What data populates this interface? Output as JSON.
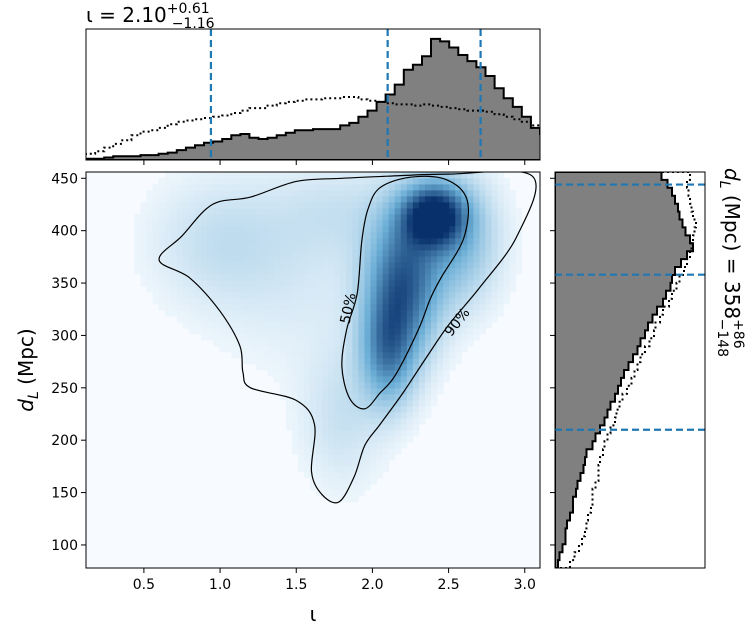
{
  "chart_data": {
    "type": "heatmap",
    "description_kind": "corner plot: 2D posterior density with marginal histograms",
    "title": "ι = 2.10",
    "title_sup": "+0.61",
    "title_sub": "−1.16",
    "right_title": "d",
    "right_title_sub": "L",
    "right_title_rest": " (Mpc) = 358",
    "right_title_sup": "+86",
    "right_title_subscript": "−148",
    "xlabel": "ι",
    "ylabel_main": "d",
    "ylabel_sub": "L",
    "ylabel_rest": " (Mpc)",
    "xlim": [
      0.12,
      3.1
    ],
    "ylim": [
      78,
      456
    ],
    "xticks": [
      0.5,
      1.0,
      1.5,
      2.0,
      2.5,
      3.0
    ],
    "xtick_labels": [
      "0.5",
      "1.0",
      "1.5",
      "2.0",
      "2.5",
      "3.0"
    ],
    "yticks": [
      100,
      150,
      200,
      250,
      300,
      350,
      400,
      450
    ],
    "ytick_labels": [
      "100",
      "150",
      "200",
      "250",
      "300",
      "350",
      "400",
      "450"
    ],
    "contour_labels": [
      "50%",
      "90%"
    ],
    "contour_label_positions": [
      [
        1.87,
        325
      ],
      [
        2.58,
        310
      ]
    ],
    "contour_50": [
      [
        2.05,
        441
      ],
      [
        2.25,
        451
      ],
      [
        2.48,
        449
      ],
      [
        2.62,
        430
      ],
      [
        2.6,
        393
      ],
      [
        2.45,
        355
      ],
      [
        2.38,
        335
      ],
      [
        2.3,
        305
      ],
      [
        2.15,
        262
      ],
      [
        2.05,
        245
      ],
      [
        1.95,
        230
      ],
      [
        1.85,
        240
      ],
      [
        1.8,
        270
      ],
      [
        1.83,
        305
      ],
      [
        1.9,
        340
      ],
      [
        1.93,
        390
      ],
      [
        1.97,
        420
      ]
    ],
    "contour_90": [
      [
        0.75,
        395
      ],
      [
        0.95,
        425
      ],
      [
        1.2,
        432
      ],
      [
        1.5,
        447
      ],
      [
        1.8,
        450
      ],
      [
        2.1,
        452
      ],
      [
        2.5,
        454
      ],
      [
        3.05,
        452
      ],
      [
        2.95,
        395
      ],
      [
        2.7,
        345
      ],
      [
        2.5,
        310
      ],
      [
        2.35,
        278
      ],
      [
        2.2,
        245
      ],
      [
        2.05,
        215
      ],
      [
        1.95,
        195
      ],
      [
        1.88,
        165
      ],
      [
        1.78,
        141
      ],
      [
        1.67,
        148
      ],
      [
        1.6,
        170
      ],
      [
        1.62,
        215
      ],
      [
        1.5,
        238
      ],
      [
        1.2,
        250
      ],
      [
        1.15,
        265
      ],
      [
        1.13,
        290
      ],
      [
        1.0,
        323
      ],
      [
        0.8,
        355
      ],
      [
        0.6,
        372
      ]
    ],
    "density_blobs": [
      {
        "x": 2.4,
        "y": 415,
        "sx": 0.14,
        "sy": 20,
        "w": 1.0
      },
      {
        "x": 2.2,
        "y": 350,
        "sx": 0.16,
        "sy": 45,
        "w": 0.75
      },
      {
        "x": 2.1,
        "y": 285,
        "sx": 0.12,
        "sy": 35,
        "w": 0.55
      },
      {
        "x": 2.55,
        "y": 390,
        "sx": 0.18,
        "sy": 40,
        "w": 0.35
      },
      {
        "x": 1.8,
        "y": 225,
        "sx": 0.18,
        "sy": 45,
        "w": 0.12
      },
      {
        "x": 1.0,
        "y": 390,
        "sx": 0.3,
        "sy": 40,
        "w": 0.12
      },
      {
        "x": 1.5,
        "y": 360,
        "sx": 0.4,
        "sy": 60,
        "w": 0.07
      },
      {
        "x": 1.8,
        "y": 420,
        "sx": 0.3,
        "sy": 30,
        "w": 0.09
      }
    ],
    "top_hist": {
      "xlim": [
        0.12,
        3.1
      ],
      "ylim": [
        0,
        1.06
      ],
      "x_step_width": 0.0596,
      "series": [
        {
          "name": "",
          "style": "filled-step",
          "values": [
            0.01,
            0.01,
            0.02,
            0.03,
            0.03,
            0.03,
            0.04,
            0.04,
            0.05,
            0.06,
            0.08,
            0.1,
            0.12,
            0.14,
            0.15,
            0.17,
            0.2,
            0.21,
            0.18,
            0.17,
            0.18,
            0.2,
            0.22,
            0.24,
            0.24,
            0.25,
            0.25,
            0.25,
            0.28,
            0.3,
            0.35,
            0.4,
            0.47,
            0.53,
            0.61,
            0.73,
            0.77,
            0.84,
            0.98,
            0.96,
            0.91,
            0.85,
            0.8,
            0.75,
            0.68,
            0.58,
            0.5,
            0.43,
            0.35,
            0.26,
            0.21,
            0.17,
            0.14,
            0.12,
            0.08,
            0.06,
            0.05,
            0.04,
            0.03,
            0.02
          ]
        },
        {
          "name": "",
          "style": "dotted-step",
          "values": [
            0.05,
            0.07,
            0.1,
            0.13,
            0.16,
            0.2,
            0.23,
            0.24,
            0.26,
            0.29,
            0.31,
            0.32,
            0.33,
            0.34,
            0.35,
            0.36,
            0.38,
            0.4,
            0.42,
            0.42,
            0.44,
            0.46,
            0.47,
            0.48,
            0.49,
            0.49,
            0.5,
            0.5,
            0.51,
            0.51,
            0.49,
            0.48,
            0.47,
            0.46,
            0.45,
            0.45,
            0.44,
            0.45,
            0.44,
            0.43,
            0.42,
            0.41,
            0.4,
            0.4,
            0.39,
            0.37,
            0.35,
            0.33,
            0.31,
            0.28,
            0.26,
            0.24,
            0.23,
            0.22,
            0.2,
            0.17,
            0.14,
            0.1,
            0.07,
            0.05
          ]
        }
      ],
      "quantile_lines": [
        0.94,
        2.1,
        2.71
      ]
    },
    "right_hist": {
      "ylim": [
        78,
        456
      ],
      "xlim": [
        0,
        1.0
      ],
      "y_step_width": 7.56,
      "series": [
        {
          "name": "",
          "style": "filled-step",
          "values": [
            0.02,
            0.03,
            0.05,
            0.07,
            0.07,
            0.08,
            0.1,
            0.12,
            0.12,
            0.14,
            0.15,
            0.17,
            0.19,
            0.2,
            0.21,
            0.25,
            0.27,
            0.3,
            0.33,
            0.35,
            0.37,
            0.4,
            0.42,
            0.44,
            0.46,
            0.49,
            0.52,
            0.55,
            0.57,
            0.6,
            0.62,
            0.65,
            0.68,
            0.72,
            0.74,
            0.77,
            0.78,
            0.8,
            0.84,
            0.88,
            0.92,
            0.9,
            0.87,
            0.85,
            0.83,
            0.82,
            0.8,
            0.78,
            0.75,
            0.71
          ]
        },
        {
          "name": "",
          "style": "dotted-step",
          "values": [
            0.1,
            0.13,
            0.16,
            0.18,
            0.2,
            0.21,
            0.22,
            0.24,
            0.25,
            0.25,
            0.27,
            0.29,
            0.29,
            0.3,
            0.32,
            0.33,
            0.35,
            0.37,
            0.4,
            0.41,
            0.43,
            0.45,
            0.48,
            0.51,
            0.53,
            0.55,
            0.57,
            0.6,
            0.63,
            0.66,
            0.67,
            0.7,
            0.72,
            0.76,
            0.78,
            0.81,
            0.83,
            0.86,
            0.88,
            0.9,
            0.91,
            0.92,
            0.93,
            0.94,
            0.92,
            0.91,
            0.9,
            0.89,
            0.88,
            0.9
          ]
        }
      ],
      "quantile_lines": [
        210,
        358,
        444
      ]
    },
    "colors": {
      "hist_fill": "#808080",
      "quantile_line": "#1f77b4",
      "contour": "#000000",
      "cmap_low": "#f7fbff",
      "cmap_mid": "#6baed6",
      "cmap_high": "#08306b"
    }
  }
}
